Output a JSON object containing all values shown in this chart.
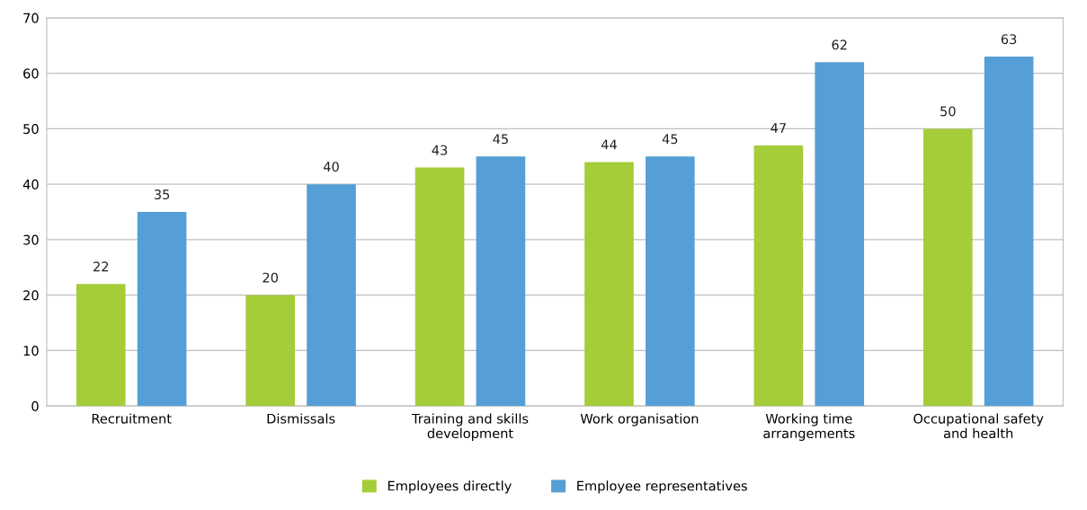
{
  "chart_data": {
    "type": "bar",
    "categories": [
      "Recruitment",
      "Dismissals",
      "Training and skills\ndevelopment",
      "Work organisation",
      "Working time\narrangements",
      "Occupational safety\nand health"
    ],
    "series": [
      {
        "name": "Employees directly",
        "color": "#a5cd39",
        "values": [
          22,
          20,
          43,
          44,
          47,
          50
        ]
      },
      {
        "name": "Employee representatives",
        "color": "#559fd6",
        "values": [
          35,
          40,
          45,
          45,
          62,
          63
        ]
      }
    ],
    "ylim": [
      0,
      70
    ],
    "yticks": [
      0,
      10,
      20,
      30,
      40,
      50,
      60,
      70
    ],
    "grid": "y",
    "legend": "bottom",
    "data_labels": true
  }
}
